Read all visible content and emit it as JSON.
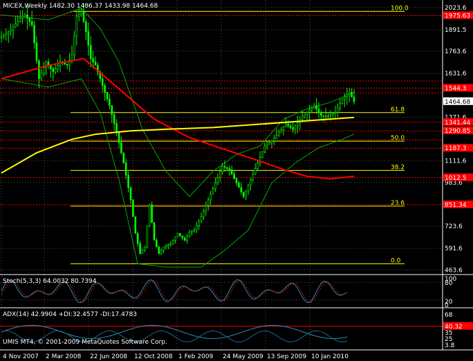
{
  "header": {
    "symbol": "MICEX,Weekly",
    "ohlc": "1482.30 1486.37 1433.98 1464.68"
  },
  "stoch_panel": {
    "label": "Stoch(5,3,3) 64.0032 80.7394",
    "scale": [
      "100",
      "80",
      "20",
      "0"
    ]
  },
  "adx_panel": {
    "label": "ADX(14) 42.9904 +DI:32.4577 -DI:17.4783",
    "scale": [
      "68",
      "40.32",
      "35",
      "25",
      "3.8"
    ]
  },
  "copyright": "UMIS MT4, © 2001-2009 MetaQuotes Software Corp.",
  "colors": {
    "background": "#000000",
    "candle": "#00ff00",
    "fib": "#ffff00",
    "ma_slow": "#ff0000",
    "ma_long": "#ffff00",
    "bollinger": "#00aa00",
    "indicator": "#2a8fbf"
  },
  "chart_data": {
    "type": "candlestick",
    "x_ticks": [
      "4 Nov 2007",
      "2 Mar 2008",
      "22 Jun 2008",
      "12 Oct 2008",
      "1 Feb 2009",
      "24 May 2009",
      "13 Sep 2009",
      "10 Jan 2010"
    ],
    "y_ticks": [
      2023.6,
      1891.5,
      1763.6,
      1631.6,
      1371.6,
      1111.6,
      983.6,
      723.6,
      591.6,
      463.6
    ],
    "price_labels": [
      {
        "value": "1975.63",
        "price": 1975.63
      },
      {
        "value": "1544.3",
        "price": 1544.3
      },
      {
        "value": "1464.68",
        "price": 1464.68
      },
      {
        "value": "1341.44",
        "price": 1341.44
      },
      {
        "value": "1290.85",
        "price": 1290.85
      },
      {
        "value": "1187.3",
        "price": 1187.3
      },
      {
        "value": "1012.5",
        "price": 1012.5
      },
      {
        "value": "851.34",
        "price": 851.34
      }
    ],
    "fib_levels": [
      {
        "label": "100.0",
        "price": 2001
      },
      {
        "label": "61.8",
        "price": 1399
      },
      {
        "label": "50.0",
        "price": 1229
      },
      {
        "label": "38.2",
        "price": 1055
      },
      {
        "label": "23.6",
        "price": 843
      },
      {
        "label": "0.0",
        "price": 500
      }
    ],
    "red_levels": [
      1975.63,
      1587,
      1544.3,
      1516,
      1341.44,
      1290.85,
      1236,
      1187.3,
      1012.5,
      851.34
    ],
    "close_path": [
      [
        0,
        1850
      ],
      [
        4,
        1890
      ],
      [
        8,
        1960
      ],
      [
        10,
        1980
      ],
      [
        13,
        1920
      ],
      [
        16,
        1600
      ],
      [
        19,
        1700
      ],
      [
        22,
        1640
      ],
      [
        25,
        1700
      ],
      [
        28,
        1680
      ],
      [
        30,
        1740
      ],
      [
        32,
        1970
      ],
      [
        34,
        2000
      ],
      [
        36,
        1880
      ],
      [
        38,
        1720
      ],
      [
        40,
        1680
      ],
      [
        43,
        1560
      ],
      [
        46,
        1440
      ],
      [
        49,
        1280
      ],
      [
        52,
        1100
      ],
      [
        55,
        880
      ],
      [
        57,
        680
      ],
      [
        59,
        560
      ],
      [
        61,
        600
      ],
      [
        63,
        850
      ],
      [
        65,
        640
      ],
      [
        67,
        560
      ],
      [
        69,
        600
      ],
      [
        72,
        620
      ],
      [
        75,
        680
      ],
      [
        78,
        640
      ],
      [
        80,
        690
      ],
      [
        82,
        700
      ],
      [
        85,
        780
      ],
      [
        88,
        880
      ],
      [
        91,
        980
      ],
      [
        94,
        1080
      ],
      [
        97,
        1060
      ],
      [
        100,
        980
      ],
      [
        103,
        900
      ],
      [
        106,
        1000
      ],
      [
        109,
        1100
      ],
      [
        112,
        1200
      ],
      [
        115,
        1230
      ],
      [
        118,
        1280
      ],
      [
        121,
        1330
      ],
      [
        124,
        1300
      ],
      [
        127,
        1360
      ],
      [
        130,
        1400
      ],
      [
        133,
        1440
      ],
      [
        136,
        1380
      ],
      [
        139,
        1380
      ],
      [
        142,
        1400
      ],
      [
        145,
        1480
      ],
      [
        148,
        1520
      ],
      [
        150,
        1464.68
      ]
    ],
    "ma_slow": [
      [
        0,
        1600
      ],
      [
        20,
        1680
      ],
      [
        35,
        1720
      ],
      [
        50,
        1540
      ],
      [
        65,
        1360
      ],
      [
        80,
        1250
      ],
      [
        95,
        1180
      ],
      [
        110,
        1110
      ],
      [
        120,
        1060
      ],
      [
        130,
        1020
      ],
      [
        140,
        1005
      ],
      [
        150,
        1020
      ]
    ],
    "ma_long": [
      [
        0,
        1040
      ],
      [
        15,
        1160
      ],
      [
        30,
        1240
      ],
      [
        40,
        1270
      ],
      [
        55,
        1290
      ],
      [
        70,
        1300
      ],
      [
        90,
        1310
      ],
      [
        110,
        1330
      ],
      [
        130,
        1350
      ],
      [
        150,
        1370
      ]
    ],
    "bb_upper": [
      [
        0,
        1980
      ],
      [
        20,
        1950
      ],
      [
        34,
        2020
      ],
      [
        42,
        1900
      ],
      [
        50,
        1700
      ],
      [
        60,
        1300
      ],
      [
        70,
        1050
      ],
      [
        80,
        900
      ],
      [
        90,
        1050
      ],
      [
        100,
        1150
      ],
      [
        110,
        1200
      ],
      [
        120,
        1360
      ],
      [
        130,
        1420
      ],
      [
        140,
        1460
      ],
      [
        150,
        1520
      ]
    ],
    "bb_lower": [
      [
        0,
        1600
      ],
      [
        20,
        1550
      ],
      [
        34,
        1600
      ],
      [
        42,
        1400
      ],
      [
        50,
        1000
      ],
      [
        58,
        500
      ],
      [
        70,
        480
      ],
      [
        85,
        480
      ],
      [
        95,
        580
      ],
      [
        105,
        700
      ],
      [
        115,
        980
      ],
      [
        125,
        1100
      ],
      [
        135,
        1190
      ],
      [
        145,
        1240
      ],
      [
        150,
        1270
      ]
    ]
  }
}
